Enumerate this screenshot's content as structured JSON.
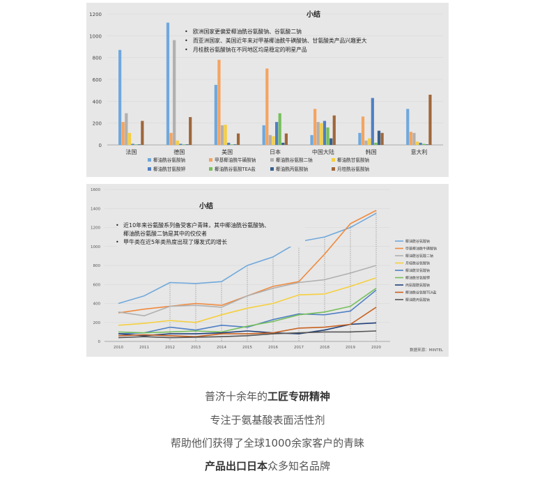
{
  "chart_data": [
    {
      "type": "bar",
      "title": "小结",
      "notes": [
        "欧洲国家更偏爱椰油酰谷氨酸钠、谷氨酸二钠",
        "而亚洲国家、美国近年来对甲基椰油酰牛磺酸钠、甘氨酸类产品兴趣更大",
        "月桂酰谷氨酸钠在不同地区均是稳定的明星产品"
      ],
      "categories": [
        "法国",
        "德国",
        "美国",
        "日本",
        "中国大陆",
        "韩国",
        "意大利"
      ],
      "ylim": [
        0,
        1200
      ],
      "yticks": [
        "0",
        "200",
        "400",
        "600",
        "800",
        "1000",
        "1200"
      ],
      "legend_position": "bottom",
      "series": [
        {
          "name": "椰油酰谷氨酸钠",
          "color": "#6fa8dc",
          "values": [
            870,
            1120,
            550,
            180,
            90,
            110,
            330
          ]
        },
        {
          "name": "甲基椰油酰牛磺酸钠",
          "color": "#f4a460",
          "values": [
            210,
            110,
            780,
            700,
            330,
            260,
            120
          ]
        },
        {
          "name": "椰油酰谷氨酸二钠",
          "color": "#b0b0b0",
          "values": [
            290,
            960,
            180,
            90,
            210,
            40,
            110
          ]
        },
        {
          "name": "椰油酰甘氨酸钠",
          "color": "#f6cf3e",
          "values": [
            110,
            40,
            185,
            80,
            200,
            60,
            30
          ]
        },
        {
          "name": "椰油酰甘氨酸钾",
          "color": "#4f7fc4",
          "values": [
            10,
            10,
            20,
            210,
            220,
            430,
            20
          ]
        },
        {
          "name": "椰油酰谷氨酸TEA盐",
          "color": "#77c05b",
          "values": [
            5,
            5,
            5,
            290,
            160,
            20,
            10
          ]
        },
        {
          "name": "椰油酰丙氨酸钠",
          "color": "#35608f",
          "values": [
            5,
            5,
            5,
            20,
            60,
            130,
            5
          ]
        },
        {
          "name": "月桂酰谷氨酸钠",
          "color": "#a0673a",
          "values": [
            220,
            255,
            105,
            105,
            270,
            110,
            460
          ]
        }
      ]
    },
    {
      "type": "line",
      "title": "小结",
      "notes": [
        "近10年来谷氨酸系列备受客户青睐，其中椰油酰谷氨酸钠、椰油酰谷氨酸二钠是其中的佼佼者",
        "甲牛类在近5年类热度出现了爆发式的增长"
      ],
      "x": [
        "2010",
        "2011",
        "2012",
        "2013",
        "2014",
        "2015",
        "2016",
        "2017",
        "2018",
        "2019",
        "2020"
      ],
      "ylim": [
        0,
        1600
      ],
      "yticks": [
        "0",
        "200",
        "400",
        "600",
        "800",
        "1000",
        "1200",
        "1400",
        "1600"
      ],
      "legend_position": "right",
      "source": "数据来源：MINTEL",
      "series": [
        {
          "name": "椰油酰谷氨酸钠",
          "color": "#6fa8dc",
          "values": [
            400,
            480,
            620,
            610,
            630,
            800,
            890,
            1050,
            1100,
            1200,
            1350
          ]
        },
        {
          "name": "甲基椰油酰牛磺酸钠",
          "color": "#f08a3e",
          "values": [
            300,
            340,
            370,
            400,
            380,
            480,
            580,
            630,
            920,
            1240,
            1380
          ]
        },
        {
          "name": "椰油酰谷氨酸二钠",
          "color": "#b0b0b0",
          "values": [
            310,
            270,
            370,
            380,
            360,
            480,
            560,
            620,
            650,
            720,
            800
          ]
        },
        {
          "name": "月桂酰谷氨酸钠",
          "color": "#f6cf3e",
          "values": [
            170,
            190,
            220,
            200,
            280,
            350,
            400,
            490,
            500,
            580,
            670
          ]
        },
        {
          "name": "椰油酰甘氨酸钠",
          "color": "#4f7fc4",
          "values": [
            80,
            90,
            150,
            120,
            170,
            150,
            230,
            290,
            280,
            320,
            540
          ]
        },
        {
          "name": "椰油酰甘氨酸钾",
          "color": "#77c05b",
          "values": [
            100,
            90,
            100,
            110,
            100,
            160,
            210,
            280,
            310,
            370,
            560
          ]
        },
        {
          "name": "丙氨酸酰氨酸钠",
          "color": "#1f3f78",
          "values": [
            80,
            60,
            80,
            80,
            90,
            110,
            90,
            80,
            120,
            180,
            195
          ]
        },
        {
          "name": "椰油酰谷氨酸TEA盐",
          "color": "#c8611f",
          "values": [
            60,
            70,
            60,
            50,
            80,
            80,
            90,
            140,
            150,
            180,
            360
          ]
        },
        {
          "name": "椰油酰丙氨酸钠",
          "color": "#555555",
          "values": [
            40,
            50,
            40,
            45,
            50,
            60,
            80,
            90,
            100,
            100,
            110
          ]
        }
      ]
    }
  ],
  "caption": {
    "line1_prefix": "普济十余年的",
    "line1_bold": "工匠专研精神",
    "line2": "专注于氨基酸表面活性剂",
    "line3": "帮助他们获得了全球1000余家客户的青睐",
    "line4_bold": "产品出口日本",
    "line4_suffix": "众多知名品牌"
  }
}
